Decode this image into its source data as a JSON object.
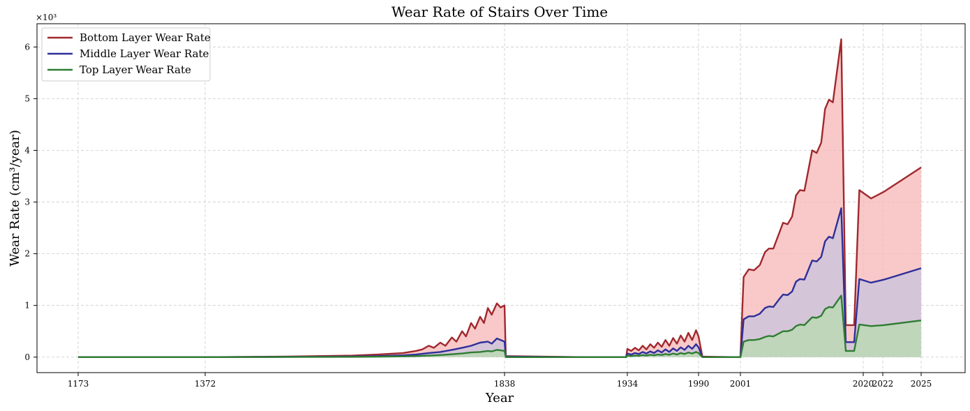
{
  "chart_data": {
    "type": "area",
    "title": "Wear Rate of Stairs Over Time",
    "xlabel": "Year",
    "ylabel": "Wear Rate (cm³/year)",
    "y_multiplier_label": "×10³",
    "xlim": [
      1173,
      2025
    ],
    "ylim": [
      -0.3,
      6.45
    ],
    "y_unit": "thousands of cm³/year",
    "x_ticks": [
      1173,
      1372,
      1838,
      1934,
      1990,
      2001,
      2020,
      2022,
      2025
    ],
    "x_tick_labels": [
      "1173",
      "1372",
      "1838",
      "1934",
      "1990",
      "2001",
      "2020",
      "2022",
      "2025"
    ],
    "y_ticks": [
      0,
      1,
      2,
      3,
      4,
      5,
      6
    ],
    "y_tick_labels": [
      "0",
      "1",
      "2",
      "3",
      "4",
      "5",
      "6"
    ],
    "grid": true,
    "legend_position": "top-left",
    "series": [
      {
        "name": "Bottom Layer Wear Rate",
        "color": "#a0282d",
        "fill": "#f5b7b5",
        "points": [
          [
            1173,
            0.0
          ],
          [
            1372,
            0.0
          ],
          [
            1500,
            0.01
          ],
          [
            1600,
            0.03
          ],
          [
            1640,
            0.05
          ],
          [
            1680,
            0.08
          ],
          [
            1700,
            0.12
          ],
          [
            1710,
            0.15
          ],
          [
            1720,
            0.22
          ],
          [
            1728,
            0.18
          ],
          [
            1738,
            0.28
          ],
          [
            1746,
            0.22
          ],
          [
            1756,
            0.38
          ],
          [
            1763,
            0.3
          ],
          [
            1772,
            0.5
          ],
          [
            1778,
            0.4
          ],
          [
            1786,
            0.66
          ],
          [
            1792,
            0.55
          ],
          [
            1800,
            0.78
          ],
          [
            1806,
            0.66
          ],
          [
            1812,
            0.95
          ],
          [
            1818,
            0.82
          ],
          [
            1826,
            1.04
          ],
          [
            1832,
            0.96
          ],
          [
            1838,
            1.0
          ],
          [
            1839,
            0.02
          ],
          [
            1900,
            0.0
          ],
          [
            1933,
            0.0
          ],
          [
            1934,
            0.16
          ],
          [
            1937,
            0.12
          ],
          [
            1940,
            0.18
          ],
          [
            1943,
            0.13
          ],
          [
            1946,
            0.22
          ],
          [
            1949,
            0.15
          ],
          [
            1952,
            0.25
          ],
          [
            1955,
            0.18
          ],
          [
            1958,
            0.28
          ],
          [
            1961,
            0.2
          ],
          [
            1964,
            0.33
          ],
          [
            1967,
            0.22
          ],
          [
            1970,
            0.37
          ],
          [
            1973,
            0.26
          ],
          [
            1976,
            0.42
          ],
          [
            1979,
            0.3
          ],
          [
            1982,
            0.47
          ],
          [
            1985,
            0.33
          ],
          [
            1988,
            0.52
          ],
          [
            1990,
            0.4
          ],
          [
            1991,
            0.01
          ],
          [
            2000,
            0.0
          ],
          [
            2001,
            0.01
          ],
          [
            2001.5,
            1.55
          ],
          [
            2002.3,
            1.7
          ],
          [
            2003.1,
            1.68
          ],
          [
            2004,
            1.78
          ],
          [
            2004.8,
            2.03
          ],
          [
            2005.4,
            2.1
          ],
          [
            2006.1,
            2.1
          ],
          [
            2007,
            2.4
          ],
          [
            2007.6,
            2.6
          ],
          [
            2008.3,
            2.57
          ],
          [
            2009,
            2.72
          ],
          [
            2009.6,
            3.13
          ],
          [
            2010.2,
            3.23
          ],
          [
            2010.9,
            3.22
          ],
          [
            2012.1,
            4.0
          ],
          [
            2012.8,
            3.95
          ],
          [
            2013.5,
            4.15
          ],
          [
            2014.1,
            4.8
          ],
          [
            2014.7,
            4.98
          ],
          [
            2015.3,
            4.93
          ],
          [
            2016.6,
            6.15
          ],
          [
            2017.3,
            0.62
          ],
          [
            2018.6,
            0.62
          ],
          [
            2019.4,
            3.23
          ],
          [
            2020.8,
            3.07
          ],
          [
            2022.1,
            3.2
          ],
          [
            2025,
            3.67
          ]
        ]
      },
      {
        "name": "Middle Layer Wear Rate",
        "color": "#2e2e9a",
        "fill": "#c9c3de",
        "points": [
          [
            1173,
            0.0
          ],
          [
            1372,
            0.0
          ],
          [
            1500,
            0.005
          ],
          [
            1600,
            0.012
          ],
          [
            1640,
            0.02
          ],
          [
            1680,
            0.035
          ],
          [
            1700,
            0.05
          ],
          [
            1720,
            0.08
          ],
          [
            1738,
            0.1
          ],
          [
            1756,
            0.14
          ],
          [
            1772,
            0.18
          ],
          [
            1786,
            0.22
          ],
          [
            1800,
            0.28
          ],
          [
            1812,
            0.3
          ],
          [
            1818,
            0.26
          ],
          [
            1826,
            0.36
          ],
          [
            1832,
            0.33
          ],
          [
            1838,
            0.3
          ],
          [
            1839,
            0.01
          ],
          [
            1900,
            0.0
          ],
          [
            1933,
            0.0
          ],
          [
            1934,
            0.07
          ],
          [
            1937,
            0.05
          ],
          [
            1940,
            0.08
          ],
          [
            1943,
            0.06
          ],
          [
            1946,
            0.1
          ],
          [
            1949,
            0.07
          ],
          [
            1952,
            0.11
          ],
          [
            1955,
            0.08
          ],
          [
            1958,
            0.13
          ],
          [
            1961,
            0.09
          ],
          [
            1964,
            0.15
          ],
          [
            1967,
            0.1
          ],
          [
            1970,
            0.17
          ],
          [
            1973,
            0.12
          ],
          [
            1976,
            0.19
          ],
          [
            1979,
            0.14
          ],
          [
            1982,
            0.22
          ],
          [
            1985,
            0.16
          ],
          [
            1988,
            0.25
          ],
          [
            1990,
            0.19
          ],
          [
            1991,
            0.0
          ],
          [
            2000,
            0.0
          ],
          [
            2001,
            0.0
          ],
          [
            2001.5,
            0.73
          ],
          [
            2002.3,
            0.79
          ],
          [
            2003.1,
            0.79
          ],
          [
            2004,
            0.84
          ],
          [
            2004.8,
            0.95
          ],
          [
            2005.4,
            0.98
          ],
          [
            2006.1,
            0.97
          ],
          [
            2007,
            1.12
          ],
          [
            2007.6,
            1.21
          ],
          [
            2008.3,
            1.2
          ],
          [
            2009,
            1.27
          ],
          [
            2009.6,
            1.46
          ],
          [
            2010.2,
            1.51
          ],
          [
            2010.9,
            1.5
          ],
          [
            2012.1,
            1.87
          ],
          [
            2012.8,
            1.85
          ],
          [
            2013.5,
            1.94
          ],
          [
            2014.1,
            2.24
          ],
          [
            2014.7,
            2.33
          ],
          [
            2015.3,
            2.3
          ],
          [
            2016.6,
            2.88
          ],
          [
            2017.3,
            0.29
          ],
          [
            2018.6,
            0.29
          ],
          [
            2019.4,
            1.51
          ],
          [
            2020.8,
            1.44
          ],
          [
            2022.1,
            1.5
          ],
          [
            2025,
            1.72
          ]
        ]
      },
      {
        "name": "Top Layer Wear Rate",
        "color": "#2e7d32",
        "fill": "#b7dbb2",
        "points": [
          [
            1173,
            0.0
          ],
          [
            1372,
            0.0
          ],
          [
            1500,
            0.002
          ],
          [
            1600,
            0.005
          ],
          [
            1640,
            0.008
          ],
          [
            1680,
            0.014
          ],
          [
            1700,
            0.02
          ],
          [
            1720,
            0.03
          ],
          [
            1738,
            0.04
          ],
          [
            1756,
            0.055
          ],
          [
            1772,
            0.07
          ],
          [
            1786,
            0.09
          ],
          [
            1800,
            0.1
          ],
          [
            1812,
            0.12
          ],
          [
            1818,
            0.11
          ],
          [
            1826,
            0.14
          ],
          [
            1832,
            0.13
          ],
          [
            1838,
            0.12
          ],
          [
            1839,
            0.0
          ],
          [
            1900,
            0.0
          ],
          [
            1933,
            0.0
          ],
          [
            1934,
            0.03
          ],
          [
            1937,
            0.02
          ],
          [
            1940,
            0.03
          ],
          [
            1943,
            0.025
          ],
          [
            1946,
            0.04
          ],
          [
            1949,
            0.03
          ],
          [
            1952,
            0.045
          ],
          [
            1955,
            0.035
          ],
          [
            1958,
            0.05
          ],
          [
            1961,
            0.04
          ],
          [
            1964,
            0.06
          ],
          [
            1967,
            0.045
          ],
          [
            1970,
            0.07
          ],
          [
            1973,
            0.05
          ],
          [
            1976,
            0.08
          ],
          [
            1979,
            0.06
          ],
          [
            1982,
            0.09
          ],
          [
            1985,
            0.07
          ],
          [
            1988,
            0.1
          ],
          [
            1990,
            0.08
          ],
          [
            1991,
            0.0
          ],
          [
            2000,
            0.0
          ],
          [
            2001,
            0.0
          ],
          [
            2001.5,
            0.3
          ],
          [
            2002.3,
            0.33
          ],
          [
            2003.1,
            0.33
          ],
          [
            2004,
            0.35
          ],
          [
            2004.8,
            0.39
          ],
          [
            2005.4,
            0.41
          ],
          [
            2006.1,
            0.4
          ],
          [
            2007,
            0.46
          ],
          [
            2007.6,
            0.5
          ],
          [
            2008.3,
            0.5
          ],
          [
            2009,
            0.53
          ],
          [
            2009.6,
            0.6
          ],
          [
            2010.2,
            0.63
          ],
          [
            2010.9,
            0.62
          ],
          [
            2012.1,
            0.77
          ],
          [
            2012.8,
            0.76
          ],
          [
            2013.5,
            0.8
          ],
          [
            2014.1,
            0.93
          ],
          [
            2014.7,
            0.97
          ],
          [
            2015.3,
            0.96
          ],
          [
            2016.6,
            1.19
          ],
          [
            2017.3,
            0.12
          ],
          [
            2018.6,
            0.12
          ],
          [
            2019.4,
            0.63
          ],
          [
            2020.8,
            0.6
          ],
          [
            2022.1,
            0.62
          ],
          [
            2025,
            0.71
          ]
        ]
      }
    ]
  }
}
